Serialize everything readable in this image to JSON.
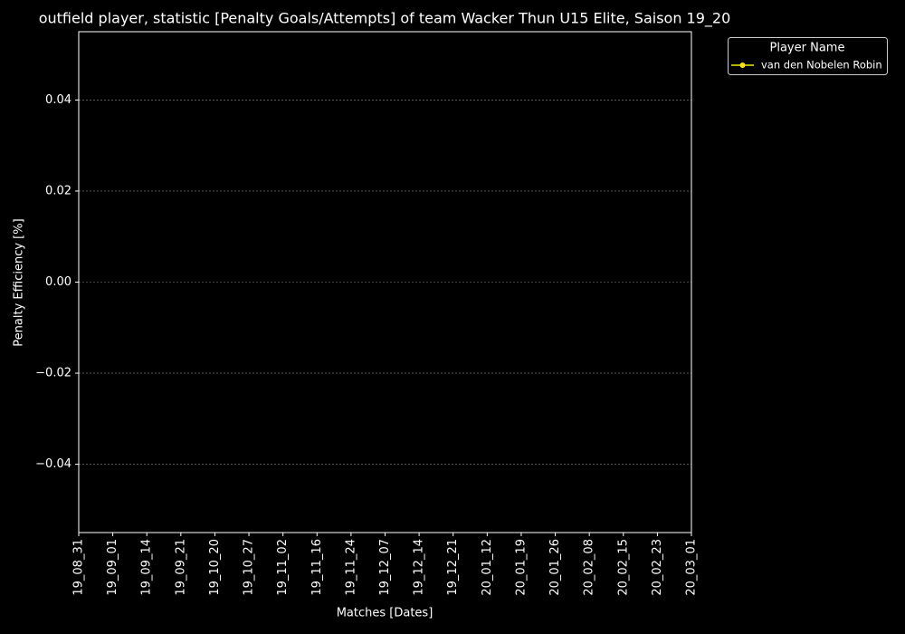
{
  "chart_data": {
    "type": "line",
    "title": "outfield player, statistic [Penalty Goals/Attempts] of team Wacker Thun U15 Elite, Saison 19_20",
    "x_label": "Matches [Dates]",
    "y_label": "Penalty Efficiency [%]",
    "categories": [
      "19_08_31",
      "19_09_01",
      "19_09_14",
      "19_09_21",
      "19_10_20",
      "19_10_27",
      "19_11_02",
      "19_11_16",
      "19_11_24",
      "19_12_07",
      "19_12_14",
      "19_12_21",
      "20_01_12",
      "20_01_19",
      "20_01_26",
      "20_02_08",
      "20_02_15",
      "20_02_23",
      "20_03_01"
    ],
    "series": [
      {
        "name": "van den Nobelen Robin",
        "color": "#f5e614",
        "values": [
          null,
          null,
          null,
          null,
          null,
          null,
          null,
          null,
          null,
          null,
          null,
          null,
          null,
          null,
          null,
          null,
          null,
          null,
          null
        ]
      }
    ],
    "ylim": [
      -0.055,
      0.055
    ],
    "yticks": [
      {
        "value": -0.04,
        "label": "−0.04"
      },
      {
        "value": -0.02,
        "label": "−0.02"
      },
      {
        "value": 0,
        "label": "0.00"
      },
      0.02,
      0.04
    ],
    "grid": true,
    "legend_title": "Player Name",
    "legend": "outside upper right"
  }
}
